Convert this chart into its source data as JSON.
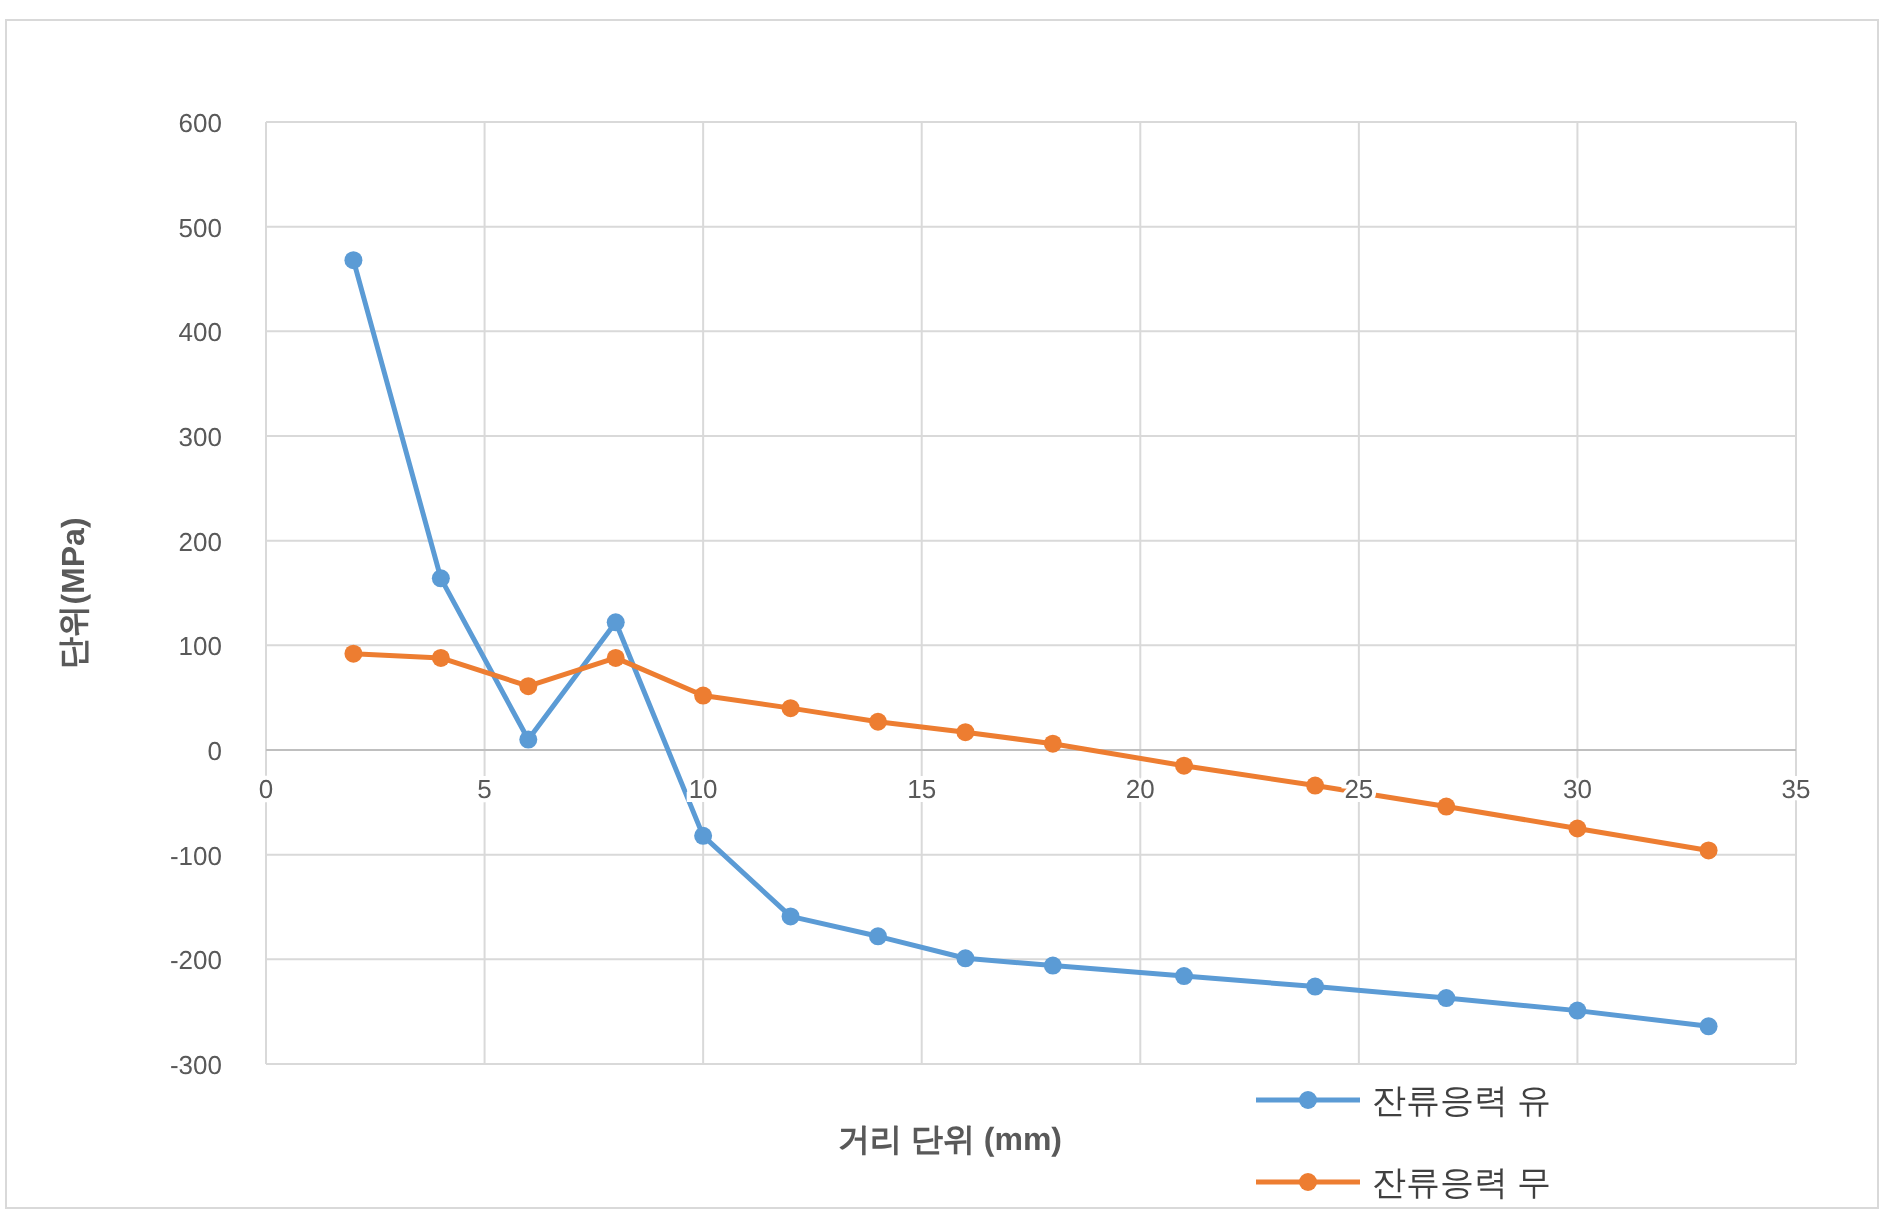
{
  "chart_data": {
    "type": "line",
    "xlabel": "거리 단위 (mm)",
    "ylabel": "단위(MPa)",
    "xlim": [
      0,
      35
    ],
    "xticks": [
      0,
      5,
      10,
      15,
      20,
      25,
      30,
      35
    ],
    "ylim": [
      -300,
      600
    ],
    "yticks": [
      -300,
      -200,
      -100,
      0,
      100,
      200,
      300,
      400,
      500,
      600
    ],
    "grid": true,
    "legend": "bottom right",
    "marker": "circle",
    "line_style": "solid",
    "x": [
      2,
      4,
      6,
      8,
      10,
      12,
      14,
      16,
      18,
      21,
      24,
      27,
      30,
      33
    ],
    "series": [
      {
        "name": "잔류응력 유",
        "color": "#5b9bd5",
        "values": [
          468,
          164,
          10,
          122,
          -82,
          -159,
          -178,
          -199,
          -206,
          -216,
          -226,
          -237,
          -249,
          -264
        ]
      },
      {
        "name": "잔류응력 무",
        "color": "#ed7d31",
        "values": [
          92,
          88,
          61,
          88,
          52,
          40,
          27,
          17,
          6,
          -15,
          -34,
          -54,
          -75,
          -96
        ]
      }
    ]
  }
}
